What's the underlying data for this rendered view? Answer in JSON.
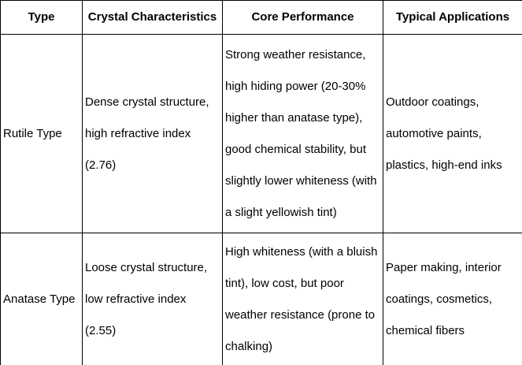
{
  "table": {
    "headers": {
      "type": "Type",
      "crystal": "Crystal Characteristics",
      "performance": "Core Performance",
      "applications": "Typical Applications"
    },
    "rows": [
      {
        "type": "Rutile Type",
        "crystal": "Dense crystal structure, high refractive index (2.76)",
        "performance": "Strong weather resistance, high hiding power (20-30% higher than anatase type), good chemical stability, but slightly lower whiteness (with a slight yellowish tint)",
        "applications": "Outdoor coatings, automotive paints, plastics, high-end inks"
      },
      {
        "type": "Anatase Type",
        "crystal": "Loose crystal structure, low refractive index (2.55)",
        "performance": "High whiteness (with a bluish tint), low cost, but poor weather resistance (prone to chalking)",
        "applications": "Paper making, interior coatings, cosmetics, chemical fibers"
      }
    ],
    "colors": {
      "border": "#000000",
      "text": "#000000",
      "background": "#ffffff"
    }
  }
}
